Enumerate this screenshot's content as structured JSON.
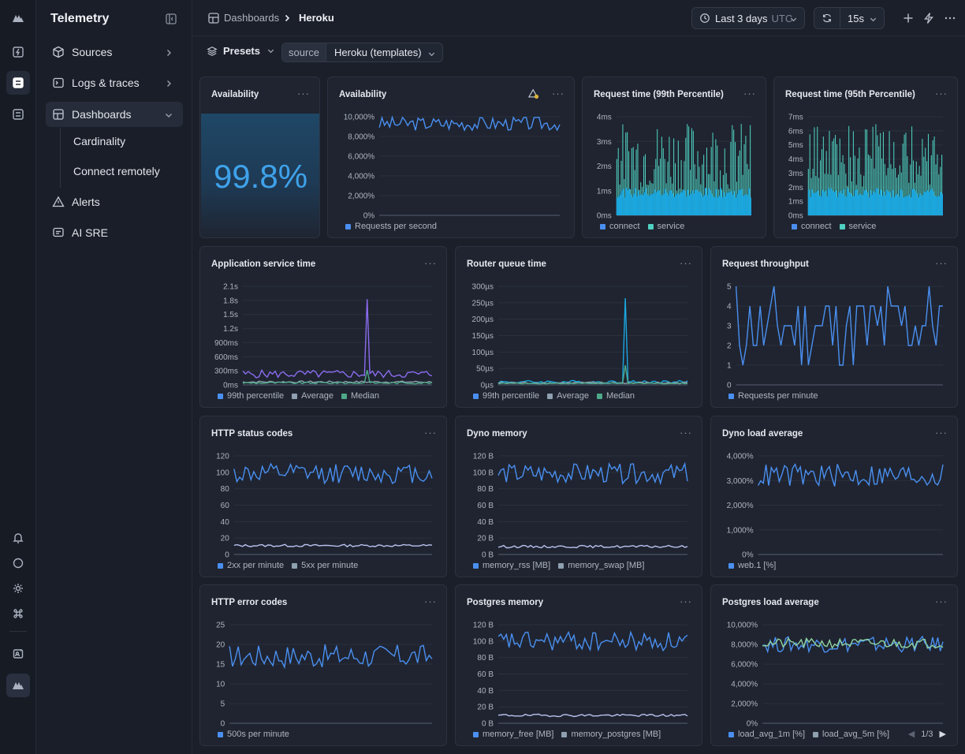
{
  "sidebar": {
    "title": "Telemetry",
    "items": [
      {
        "label": "Sources",
        "icon": "cube-icon"
      },
      {
        "label": "Logs & traces",
        "icon": "terminal-icon"
      },
      {
        "label": "Dashboards",
        "icon": "dashboard-icon"
      },
      {
        "label": "Alerts",
        "icon": "warning-icon"
      },
      {
        "label": "AI SRE",
        "icon": "chat-icon"
      }
    ],
    "sub_items": [
      "Cardinality",
      "Connect remotely"
    ]
  },
  "topbar": {
    "breadcrumb_root": "Dashboards",
    "breadcrumb_current": "Heroku",
    "time_range": "Last 3 days",
    "timezone": "UTC",
    "refresh_interval": "15s"
  },
  "filters": {
    "presets_label": "Presets",
    "source_key": "source",
    "source_value": "Heroku (templates)"
  },
  "colors": {
    "blue": "#4a8ff0",
    "cyan": "#1aa6e0",
    "teal": "#4fd0c0",
    "purple": "#8b6cf0",
    "grey": "#8fa0b0",
    "green": "#4ea889",
    "lavender": "#b9c2f0",
    "lightgreen": "#8fd3a0"
  },
  "panels": [
    {
      "title": "Availability",
      "value": "99.8%"
    },
    {
      "title": "Availability",
      "y_ticks": [
        "10,000%",
        "8,000%",
        "6,000%",
        "4,000%",
        "2,000%",
        "0%"
      ],
      "legend": [
        "Requests per second"
      ]
    },
    {
      "title": "Request time (99th Percentile)",
      "y_ticks": [
        "4ms",
        "3ms",
        "2ms",
        "1ms",
        "0ms"
      ],
      "legend": [
        "connect",
        "service"
      ]
    },
    {
      "title": "Request time (95th Percentile)",
      "y_ticks": [
        "7ms",
        "6ms",
        "5ms",
        "4ms",
        "3ms",
        "2ms",
        "1ms",
        "0ms"
      ],
      "legend": [
        "connect",
        "service"
      ]
    },
    {
      "title": "Application service time",
      "y_ticks": [
        "2.1s",
        "1.8s",
        "1.5s",
        "1.2s",
        "900ms",
        "600ms",
        "300ms",
        "0ms"
      ],
      "legend": [
        "99th percentile",
        "Average",
        "Median"
      ]
    },
    {
      "title": "Router queue time",
      "y_ticks": [
        "300µs",
        "250µs",
        "200µs",
        "150µs",
        "100µs",
        "50µs",
        "0µs"
      ],
      "legend": [
        "99th percentile",
        "Average",
        "Median"
      ]
    },
    {
      "title": "Request throughput",
      "y_ticks": [
        "5",
        "4",
        "3",
        "2",
        "1",
        "0"
      ],
      "legend": [
        "Requests per minute"
      ]
    },
    {
      "title": "HTTP status codes",
      "y_ticks": [
        "120",
        "100",
        "80",
        "60",
        "40",
        "20",
        "0"
      ],
      "legend": [
        "2xx per minute",
        "5xx per minute"
      ]
    },
    {
      "title": "Dyno memory",
      "y_ticks": [
        "120 B",
        "100 B",
        "80 B",
        "60 B",
        "40 B",
        "20 B",
        "0 B"
      ],
      "legend": [
        "memory_rss [MB]",
        "memory_swap [MB]"
      ]
    },
    {
      "title": "Dyno load average",
      "y_ticks": [
        "4,000%",
        "3,000%",
        "2,000%",
        "1,000%",
        "0%"
      ],
      "legend": [
        "web.1 [%]"
      ]
    },
    {
      "title": "HTTP error codes",
      "y_ticks": [
        "25",
        "20",
        "15",
        "10",
        "5",
        "0"
      ],
      "legend": [
        "500s per minute"
      ]
    },
    {
      "title": "Postgres memory",
      "y_ticks": [
        "120 B",
        "100 B",
        "80 B",
        "60 B",
        "40 B",
        "20 B",
        "0 B"
      ],
      "legend": [
        "memory_free [MB]",
        "memory_postgres [MB]"
      ]
    },
    {
      "title": "Postgres load average",
      "y_ticks": [
        "10,000%",
        "8,000%",
        "6,000%",
        "4,000%",
        "2,000%",
        "0%"
      ],
      "legend": [
        "load_avg_1m [%]",
        "load_avg_5m [%]"
      ],
      "pager": "1/3"
    }
  ]
}
